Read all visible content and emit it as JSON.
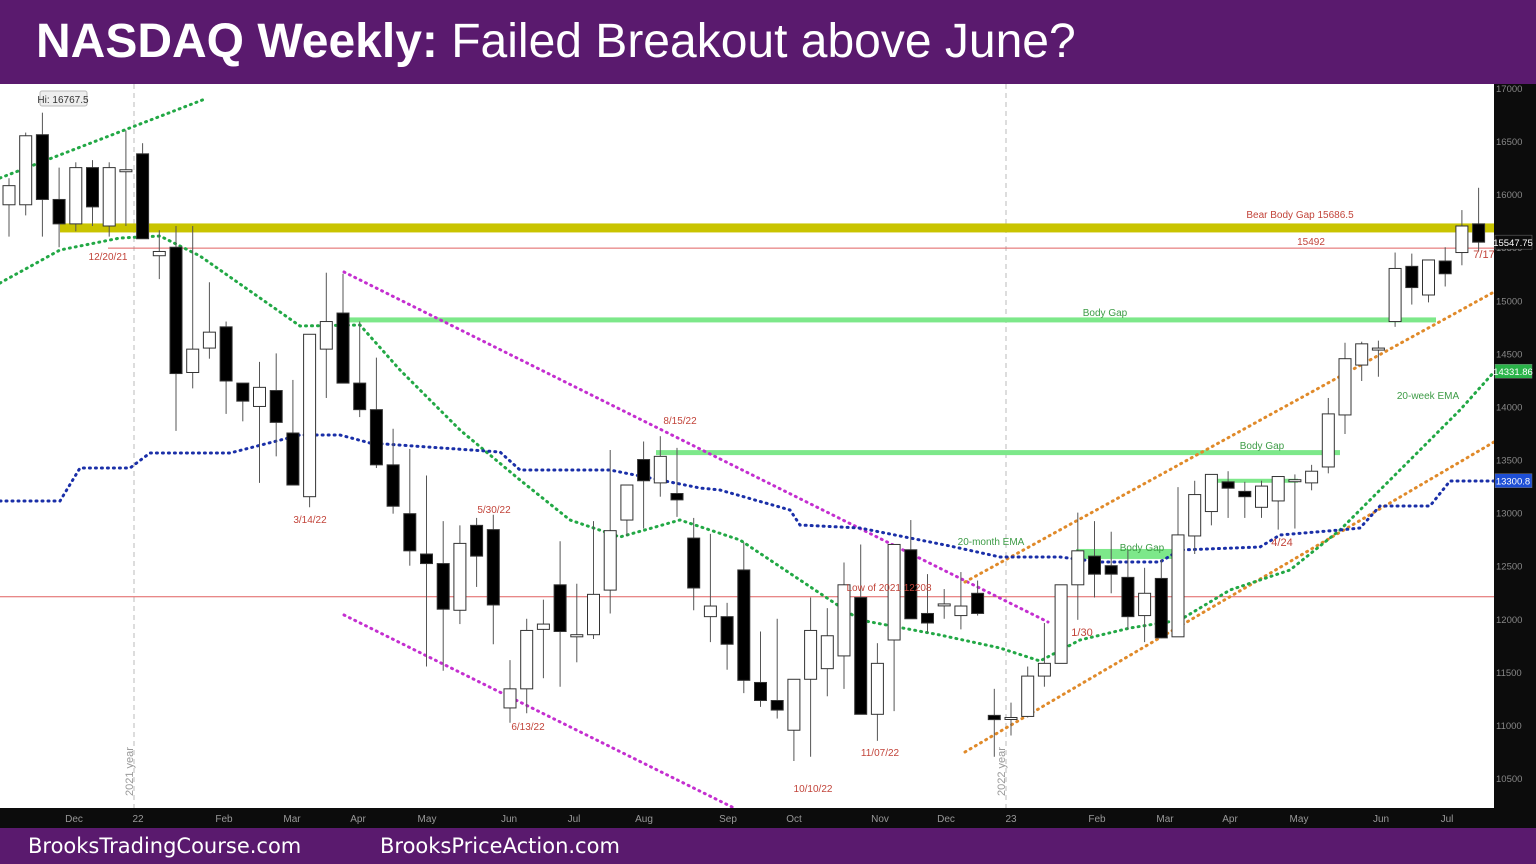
{
  "header": {
    "title_bold": "NASDAQ Weekly:",
    "title_rest": " Failed Breakout above June?"
  },
  "footer": {
    "left_link": "BrooksTradingCourse.com",
    "right_link": "BrooksPriceAction.com"
  },
  "colors": {
    "header_bg": "#5a1a6e",
    "bull_bar": "#ffffff",
    "bear_bar": "#000000",
    "ema20_week": "#22a845",
    "ema20_month": "#1a2fa8",
    "trend_channel": "#e08a2a",
    "bear_channel": "#c42fd0",
    "bear_body_gap_band": "#c9c400",
    "body_gap": "#7de88a",
    "low_line": "#e06060"
  },
  "chart_data": {
    "type": "candlestick",
    "title": "NASDAQ Weekly: Failed Breakout above June?",
    "xlabel": "",
    "ylabel": "",
    "ylim": [
      10300,
      17000
    ],
    "y_ticks": [
      10500,
      11000,
      11500,
      12000,
      12500,
      13000,
      13500,
      14000,
      14500,
      15000,
      15500,
      16000,
      16500,
      17000
    ],
    "x_ticks": [
      "Dec",
      "22",
      "Feb",
      "Mar",
      "Apr",
      "May",
      "Jun",
      "Jul",
      "Aug",
      "Sep",
      "Oct",
      "Nov",
      "Dec",
      "23",
      "Feb",
      "Mar",
      "Apr",
      "May",
      "Jun",
      "Jul"
    ],
    "grid": false,
    "price_labels": {
      "last": "15547.75",
      "ema20_week": "14331.86",
      "ema20_month": "13300.8"
    },
    "annotations": [
      {
        "text": "Hi: 16767.5",
        "type": "callout"
      },
      {
        "text": "12/20/21"
      },
      {
        "text": "3/14/22"
      },
      {
        "text": "5/30/22"
      },
      {
        "text": "6/13/22"
      },
      {
        "text": "8/15/22"
      },
      {
        "text": "10/10/22"
      },
      {
        "text": "11/07/22"
      },
      {
        "text": "1/30"
      },
      {
        "text": "4/24"
      },
      {
        "text": "7/17"
      },
      {
        "text": "Bear Body Gap 15686.5"
      },
      {
        "text": "15492"
      },
      {
        "text": "Body Gap"
      },
      {
        "text": "Body Gap"
      },
      {
        "text": "Body Gap"
      },
      {
        "text": "Low of 2021 12208"
      },
      {
        "text": "20-month EMA"
      },
      {
        "text": "20-week EMA"
      },
      {
        "text": "2021 year",
        "type": "vertical"
      },
      {
        "text": "2022 year",
        "type": "vertical"
      }
    ],
    "levels": [
      {
        "name": "Bear Body Gap",
        "value": 15686.5
      },
      {
        "name": "15492",
        "value": 15492
      },
      {
        "name": "Low of 2021",
        "value": 12208
      },
      {
        "name": "Body Gap upper",
        "value": 14820
      },
      {
        "name": "Body Gap middle",
        "value": 13570
      },
      {
        "name": "Body Gap lower",
        "value": 12590
      }
    ],
    "series": [
      {
        "name": "Candles (approx O,H,L,C by week)",
        "values": [
          [
            15900,
            16150,
            15600,
            16080
          ],
          [
            15900,
            16580,
            15800,
            16550
          ],
          [
            16560,
            16767.5,
            15600,
            15950
          ],
          [
            15950,
            16250,
            15500,
            15720
          ],
          [
            15720,
            16300,
            15650,
            16250
          ],
          [
            16250,
            16320,
            15700,
            15880
          ],
          [
            15700,
            16300,
            15600,
            16250
          ],
          [
            16220,
            16600,
            15700,
            16230
          ],
          [
            16380,
            16480,
            15640,
            15580
          ],
          [
            15420,
            15660,
            15200,
            15460
          ],
          [
            15500,
            15700,
            13770,
            14310
          ],
          [
            14320,
            15700,
            14170,
            14540
          ],
          [
            14550,
            15170,
            14450,
            14700
          ],
          [
            14750,
            14800,
            13930,
            14240
          ],
          [
            14220,
            14200,
            13860,
            14050
          ],
          [
            14000,
            14420,
            13280,
            14180
          ],
          [
            14150,
            14500,
            13530,
            13850
          ],
          [
            13750,
            14250,
            13300,
            13260
          ],
          [
            13150,
            14630,
            13050,
            14680
          ],
          [
            14540,
            15260,
            14080,
            14800
          ],
          [
            14880,
            15250,
            14300,
            14220
          ],
          [
            14220,
            14800,
            13900,
            13970
          ],
          [
            13970,
            14460,
            13420,
            13450
          ],
          [
            13450,
            13790,
            12990,
            13060
          ],
          [
            12990,
            13600,
            12500,
            12640
          ],
          [
            12610,
            13350,
            11550,
            12520
          ],
          [
            12520,
            12920,
            11510,
            12090
          ],
          [
            12080,
            12880,
            11950,
            12710
          ],
          [
            12880,
            12950,
            12300,
            12590
          ],
          [
            12840,
            12980,
            11760,
            12130
          ],
          [
            11160,
            11610,
            11020,
            11340
          ],
          [
            11340,
            12000,
            11110,
            11890
          ],
          [
            11900,
            12180,
            11440,
            11950
          ],
          [
            12320,
            12730,
            11360,
            11880
          ],
          [
            11830,
            12330,
            11590,
            11850
          ],
          [
            11850,
            12920,
            11810,
            12230
          ],
          [
            12270,
            13590,
            12050,
            12830
          ],
          [
            12930,
            13200,
            12780,
            13260
          ],
          [
            13500,
            13670,
            12850,
            13300
          ],
          [
            13280,
            13720,
            13150,
            13530
          ],
          [
            13180,
            13610,
            12960,
            13120
          ],
          [
            12760,
            12950,
            12080,
            12290
          ],
          [
            12020,
            12800,
            11780,
            12120
          ],
          [
            12020,
            12150,
            11520,
            11760
          ],
          [
            12460,
            12720,
            11300,
            11420
          ],
          [
            11400,
            11880,
            11170,
            11230
          ],
          [
            11230,
            12000,
            11060,
            11140
          ],
          [
            10950,
            11140,
            10660,
            11430
          ],
          [
            11430,
            12200,
            10700,
            11890
          ],
          [
            11530,
            12100,
            11270,
            11840
          ],
          [
            11650,
            12530,
            11340,
            12320
          ],
          [
            12200,
            12700,
            11200,
            11100
          ],
          [
            11100,
            11770,
            10850,
            11580
          ],
          [
            11800,
            12600,
            11130,
            12700
          ],
          [
            12650,
            12930,
            12120,
            12000
          ],
          [
            12050,
            12420,
            11870,
            11960
          ],
          [
            12130,
            12280,
            12000,
            12140
          ],
          [
            12030,
            12440,
            11900,
            12120
          ],
          [
            12240,
            12360,
            12030,
            12050
          ],
          [
            11090,
            11340,
            10700,
            11050
          ],
          [
            11060,
            11210,
            10900,
            11070
          ],
          [
            11080,
            11550,
            11070,
            11460
          ],
          [
            11460,
            11960,
            11360,
            11580
          ],
          [
            11580,
            12260,
            11640,
            12320
          ],
          [
            12320,
            13000,
            11990,
            12640
          ],
          [
            12590,
            12920,
            12200,
            12420
          ],
          [
            12500,
            12820,
            12240,
            12420
          ],
          [
            12390,
            12650,
            11900,
            12020
          ],
          [
            12030,
            12480,
            11780,
            12240
          ],
          [
            12380,
            12560,
            11840,
            11820
          ],
          [
            11830,
            13240,
            12750,
            12790
          ],
          [
            12780,
            13300,
            12610,
            13170
          ],
          [
            13010,
            13200,
            12880,
            13360
          ],
          [
            13290,
            13390,
            12950,
            13230
          ],
          [
            13200,
            13290,
            12950,
            13150
          ],
          [
            13050,
            13300,
            12950,
            13250
          ],
          [
            13110,
            13330,
            12840,
            13340
          ],
          [
            13300,
            13360,
            12850,
            13310
          ],
          [
            13280,
            13450,
            13210,
            13390
          ],
          [
            13430,
            14080,
            13370,
            13930
          ],
          [
            13920,
            14600,
            13740,
            14450
          ],
          [
            14390,
            14610,
            14240,
            14590
          ],
          [
            14540,
            14620,
            14280,
            14550
          ],
          [
            14800,
            15450,
            14750,
            15300
          ],
          [
            15320,
            15440,
            14960,
            15120
          ],
          [
            15050,
            15370,
            14980,
            15380
          ],
          [
            15370,
            15500,
            15130,
            15250
          ],
          [
            15450,
            15850,
            15330,
            15700
          ],
          [
            15720,
            16060,
            15460,
            15547.75
          ]
        ]
      },
      {
        "name": "20-week EMA",
        "last": 14331.86
      },
      {
        "name": "20-month EMA",
        "last": 13300.8
      }
    ]
  }
}
